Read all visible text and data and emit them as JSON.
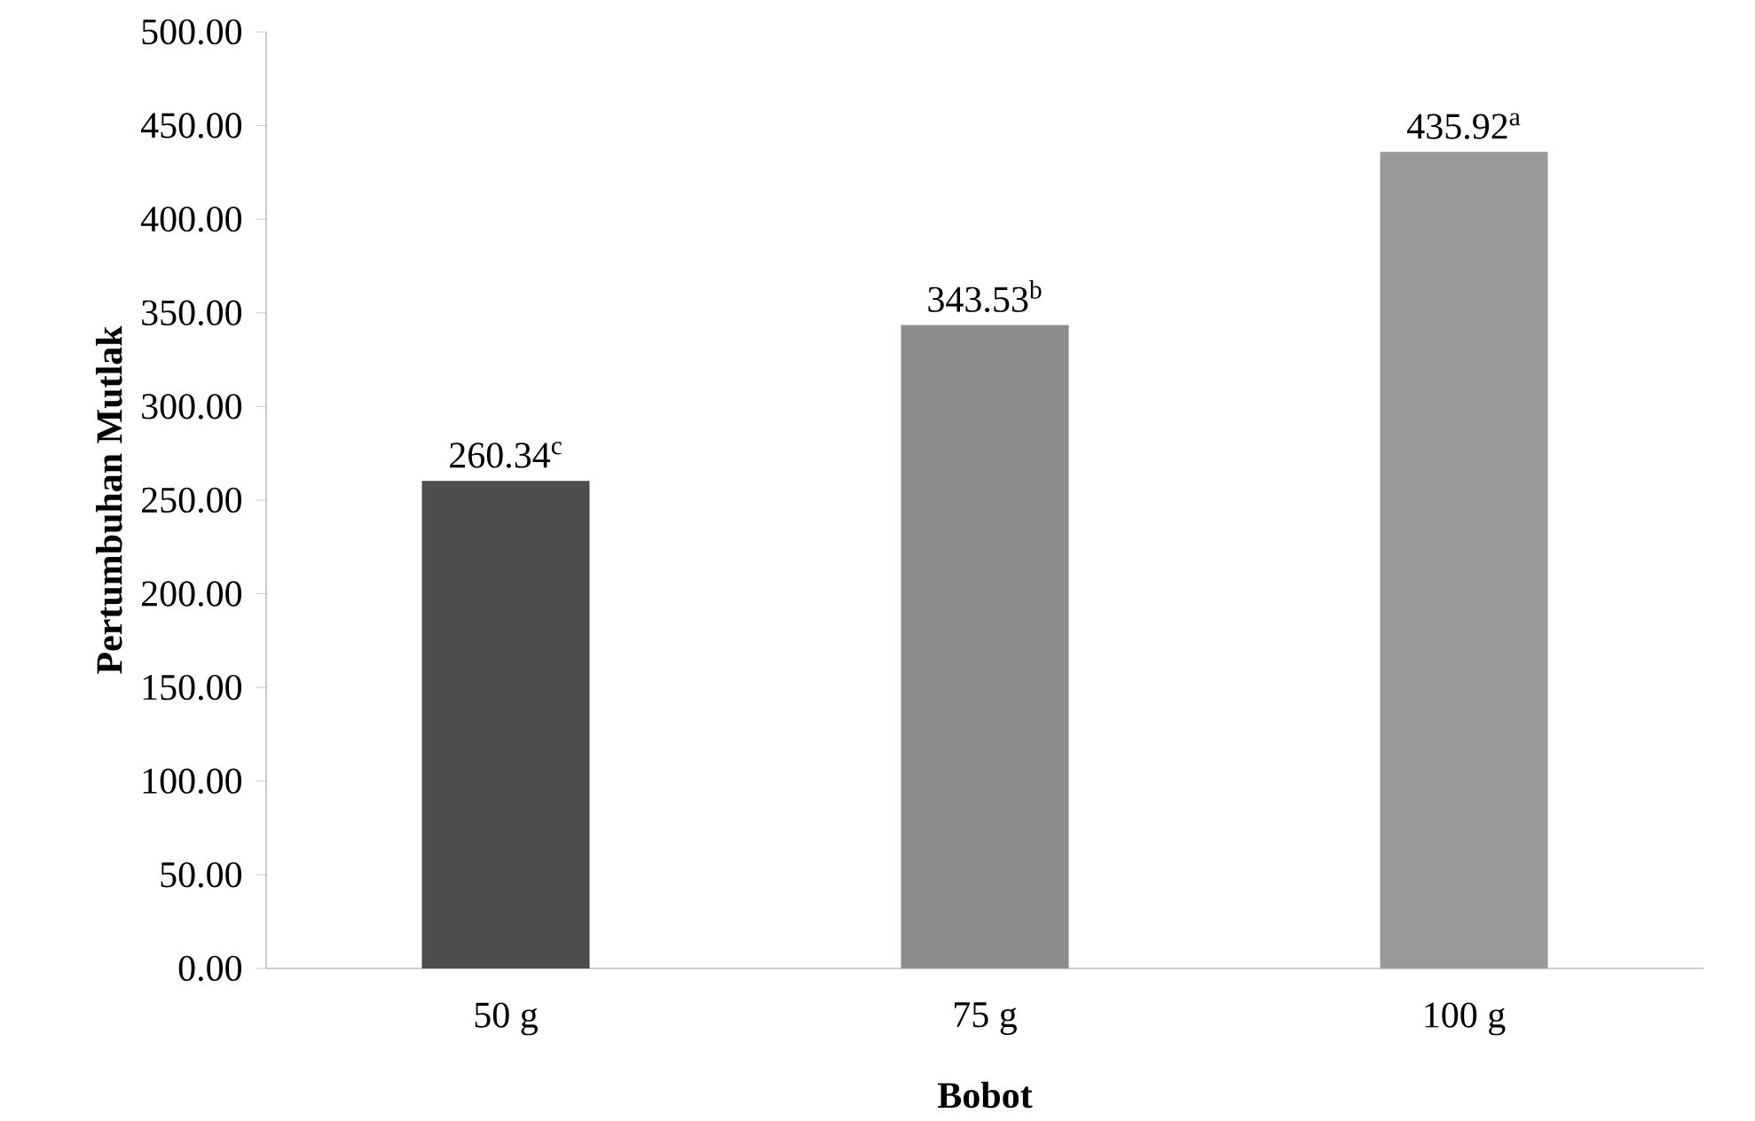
{
  "chart_data": {
    "type": "bar",
    "xlabel": "Bobot",
    "ylabel": "Pertumbuhan Mutlak",
    "categories": [
      "50 g",
      "75 g",
      "100 g"
    ],
    "values": [
      260.34,
      343.53,
      435.92
    ],
    "colors": [
      "#4d4d4d",
      "#8c8c8c",
      "#999999"
    ],
    "value_labels": [
      "260.34$^{c}$",
      "343.53$^{b}$",
      "435.92$^{a}$"
    ],
    "ylim": [
      0,
      500
    ],
    "yticks": [
      {
        "value": 0,
        "label": "0.00"
      },
      {
        "value": 50,
        "label": "50.00"
      },
      {
        "value": 100,
        "label": "100.00"
      },
      {
        "value": 150,
        "label": "150.00"
      },
      {
        "value": 200,
        "label": "200.00"
      },
      {
        "value": 250,
        "label": "250.00"
      },
      {
        "value": 300,
        "label": "300.00"
      },
      {
        "value": 350,
        "label": "350.00"
      },
      {
        "value": 400,
        "label": "400.00"
      },
      {
        "value": 450,
        "label": "450.00"
      },
      {
        "value": 500,
        "label": "500.00"
      }
    ],
    "grid": false
  }
}
